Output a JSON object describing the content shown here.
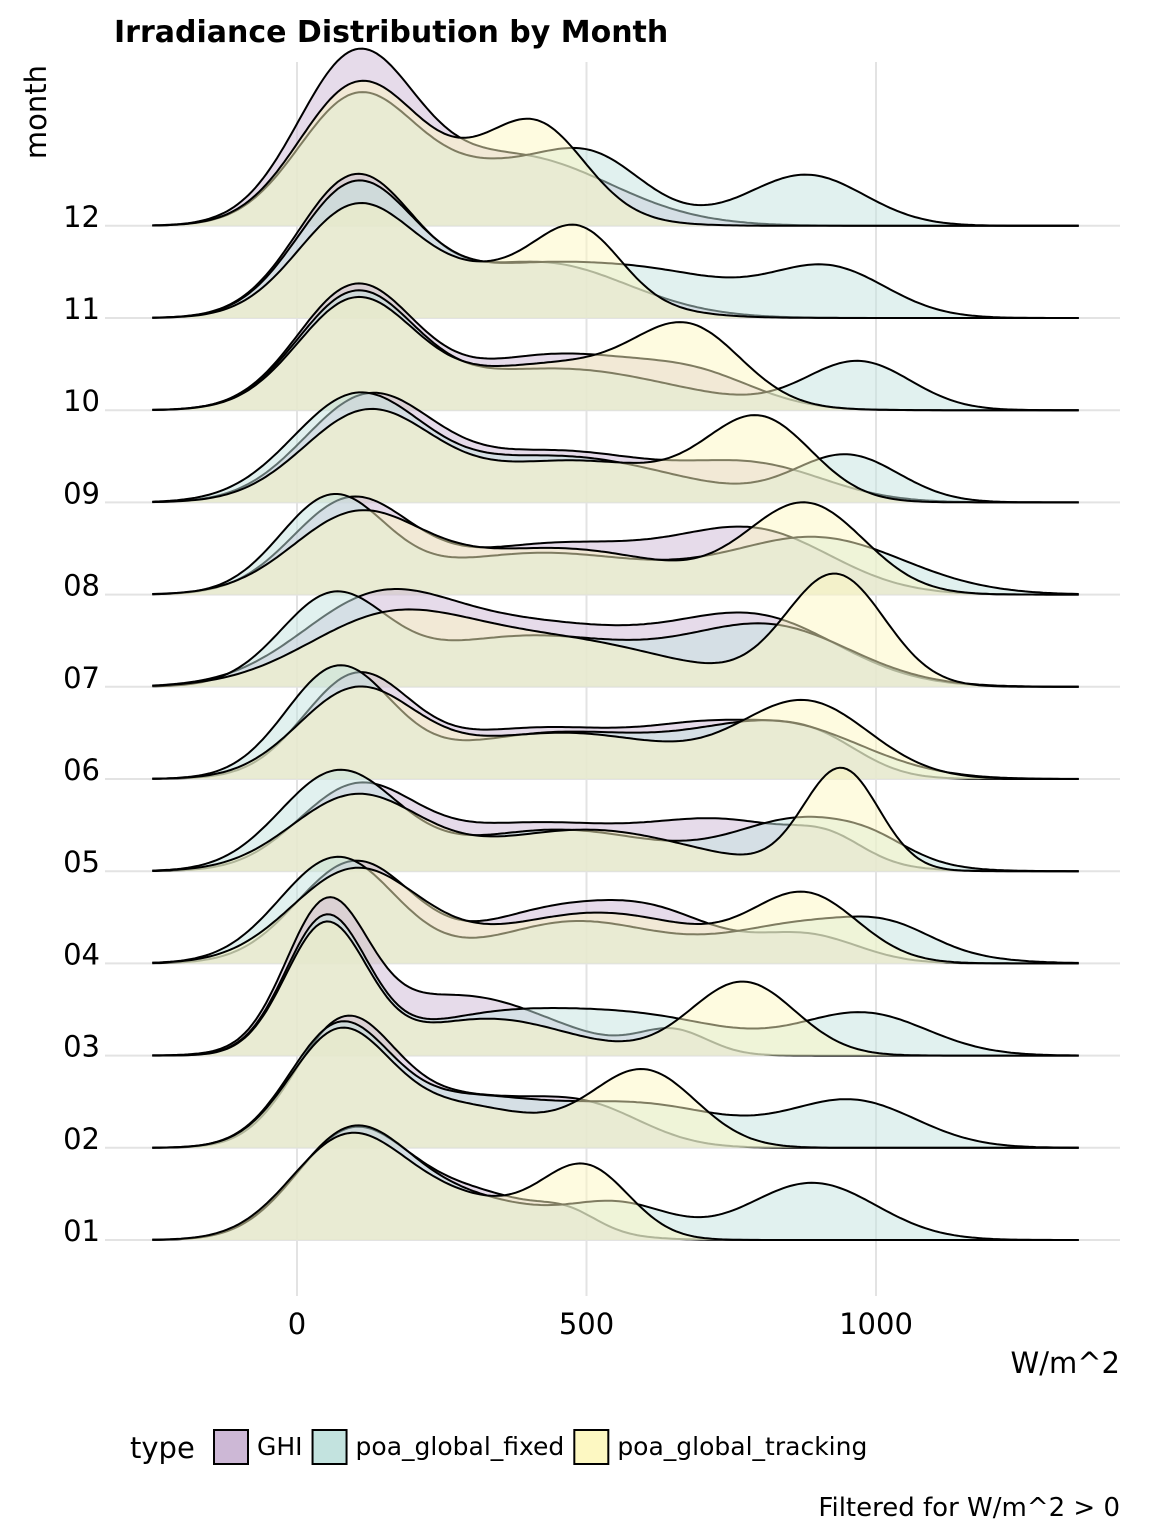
{
  "chart_data": {
    "type": "ridgeline",
    "title": "Irradiance Distribution by Month",
    "xlabel": "W/m^2",
    "ylabel": "month",
    "caption": "Filtered for W/m^2 > 0",
    "legend_title": "type",
    "legend_position": "bottom",
    "grid": true,
    "xlim": [
      -250,
      1350
    ],
    "x_ticks": [
      0,
      500,
      1000
    ],
    "months": [
      "01",
      "02",
      "03",
      "04",
      "05",
      "06",
      "07",
      "08",
      "09",
      "10",
      "11",
      "12"
    ],
    "series": [
      {
        "name": "GHI",
        "color": "#cdb8d6"
      },
      {
        "name": "poa_global_fixed",
        "color": "#c3e3df"
      },
      {
        "name": "poa_global_tracking",
        "color": "#fdf8c2"
      }
    ],
    "density_note": "Relative density per month; each component is [center W/m^2, width W/m^2, height (0-1 of row spacing)]",
    "densities": {
      "01": {
        "GHI": [
          [
            90,
            95,
            1.08
          ],
          [
            300,
            130,
            0.5
          ],
          [
            470,
            50,
            0.15
          ]
        ],
        "poa_global_fixed": [
          [
            90,
            95,
            1.05
          ],
          [
            280,
            140,
            0.45
          ],
          [
            560,
            90,
            0.35
          ],
          [
            890,
            110,
            0.62
          ]
        ],
        "poa_global_tracking": [
          [
            80,
            95,
            0.95
          ],
          [
            260,
            140,
            0.45
          ],
          [
            500,
            75,
            0.72
          ]
        ]
      },
      "02": {
        "GHI": [
          [
            80,
            85,
            1.3
          ],
          [
            280,
            120,
            0.5
          ],
          [
            500,
            100,
            0.42
          ]
        ],
        "poa_global_fixed": [
          [
            70,
            85,
            1.2
          ],
          [
            280,
            140,
            0.5
          ],
          [
            600,
            150,
            0.45
          ],
          [
            960,
            110,
            0.5
          ]
        ],
        "poa_global_tracking": [
          [
            70,
            85,
            1.15
          ],
          [
            280,
            140,
            0.45
          ],
          [
            600,
            90,
            0.82
          ]
        ]
      },
      "03": {
        "GHI": [
          [
            50,
            70,
            1.48
          ],
          [
            280,
            160,
            0.65
          ],
          [
            650,
            60,
            0.25
          ]
        ],
        "poa_global_fixed": [
          [
            50,
            70,
            1.45
          ],
          [
            340,
            160,
            0.42
          ],
          [
            620,
            150,
            0.35
          ],
          [
            980,
            110,
            0.45
          ]
        ],
        "poa_global_tracking": [
          [
            50,
            70,
            1.4
          ],
          [
            330,
            140,
            0.4
          ],
          [
            770,
            90,
            0.8
          ]
        ]
      },
      "04": {
        "GHI": [
          [
            100,
            100,
            1.1
          ],
          [
            420,
            120,
            0.5
          ],
          [
            620,
            110,
            0.5
          ],
          [
            880,
            90,
            0.3
          ]
        ],
        "poa_global_fixed": [
          [
            70,
            100,
            1.15
          ],
          [
            480,
            140,
            0.45
          ],
          [
            900,
            150,
            0.45
          ],
          [
            1030,
            70,
            0.15
          ]
        ],
        "poa_global_tracking": [
          [
            100,
            110,
            1.0
          ],
          [
            520,
            180,
            0.55
          ],
          [
            880,
            90,
            0.7
          ]
        ]
      },
      "05": {
        "GHI": [
          [
            100,
            100,
            0.85
          ],
          [
            400,
            170,
            0.5
          ],
          [
            750,
            140,
            0.5
          ],
          [
            920,
            60,
            0.2
          ]
        ],
        "poa_global_fixed": [
          [
            70,
            100,
            1.05
          ],
          [
            450,
            180,
            0.45
          ],
          [
            880,
            120,
            0.55
          ],
          [
            1000,
            60,
            0.1
          ]
        ],
        "poa_global_tracking": [
          [
            100,
            110,
            0.8
          ],
          [
            500,
            180,
            0.45
          ],
          [
            940,
            65,
            1.1
          ]
        ]
      },
      "06": {
        "GHI": [
          [
            100,
            90,
            1.0
          ],
          [
            420,
            200,
            0.55
          ],
          [
            750,
            120,
            0.45
          ],
          [
            900,
            80,
            0.3
          ]
        ],
        "poa_global_fixed": [
          [
            70,
            90,
            1.15
          ],
          [
            450,
            200,
            0.5
          ],
          [
            840,
            140,
            0.55
          ]
        ],
        "poa_global_tracking": [
          [
            100,
            100,
            0.9
          ],
          [
            460,
            200,
            0.5
          ],
          [
            880,
            110,
            0.8
          ]
        ]
      },
      "07": {
        "GHI": [
          [
            130,
            130,
            0.8
          ],
          [
            420,
            200,
            0.65
          ],
          [
            800,
            140,
            0.68
          ]
        ],
        "poa_global_fixed": [
          [
            60,
            90,
            0.9
          ],
          [
            400,
            200,
            0.55
          ],
          [
            820,
            140,
            0.62
          ]
        ],
        "poa_global_tracking": [
          [
            150,
            140,
            0.65
          ],
          [
            450,
            200,
            0.5
          ],
          [
            930,
            85,
            1.2
          ]
        ]
      },
      "08": {
        "GHI": [
          [
            90,
            100,
            0.95
          ],
          [
            450,
            200,
            0.55
          ],
          [
            800,
            130,
            0.6
          ]
        ],
        "poa_global_fixed": [
          [
            60,
            90,
            1.0
          ],
          [
            420,
            200,
            0.45
          ],
          [
            900,
            150,
            0.6
          ]
        ],
        "poa_global_tracking": [
          [
            100,
            110,
            0.8
          ],
          [
            450,
            200,
            0.5
          ],
          [
            880,
            100,
            0.95
          ]
        ]
      },
      "09": {
        "GHI": [
          [
            120,
            110,
            1.08
          ],
          [
            450,
            180,
            0.55
          ],
          [
            800,
            120,
            0.35
          ]
        ],
        "poa_global_fixed": [
          [
            100,
            110,
            1.08
          ],
          [
            450,
            200,
            0.5
          ],
          [
            950,
            90,
            0.5
          ]
        ],
        "poa_global_tracking": [
          [
            120,
            110,
            0.95
          ],
          [
            480,
            180,
            0.45
          ],
          [
            800,
            90,
            0.85
          ]
        ]
      },
      "10": {
        "GHI": [
          [
            100,
            100,
            1.3
          ],
          [
            450,
            170,
            0.6
          ],
          [
            700,
            100,
            0.25
          ]
        ],
        "poa_global_fixed": [
          [
            100,
            100,
            1.2
          ],
          [
            450,
            200,
            0.45
          ],
          [
            970,
            90,
            0.52
          ]
        ],
        "poa_global_tracking": [
          [
            100,
            100,
            1.15
          ],
          [
            450,
            180,
            0.5
          ],
          [
            680,
            90,
            0.72
          ]
        ]
      },
      "11": {
        "GHI": [
          [
            100,
            100,
            1.5
          ],
          [
            420,
            150,
            0.6
          ]
        ],
        "poa_global_fixed": [
          [
            100,
            100,
            1.4
          ],
          [
            380,
            150,
            0.5
          ],
          [
            640,
            140,
            0.4
          ],
          [
            920,
            100,
            0.52
          ]
        ],
        "poa_global_tracking": [
          [
            100,
            100,
            1.15
          ],
          [
            380,
            150,
            0.52
          ],
          [
            490,
            70,
            0.6
          ]
        ]
      },
      "12": {
        "GHI": [
          [
            100,
            100,
            1.75
          ],
          [
            380,
            160,
            0.75
          ]
        ],
        "poa_global_fixed": [
          [
            100,
            100,
            1.3
          ],
          [
            380,
            160,
            0.65
          ],
          [
            520,
            80,
            0.35
          ],
          [
            880,
            100,
            0.55
          ]
        ],
        "poa_global_tracking": [
          [
            100,
            100,
            1.4
          ],
          [
            320,
            140,
            0.55
          ],
          [
            420,
            80,
            0.7
          ]
        ]
      }
    }
  }
}
